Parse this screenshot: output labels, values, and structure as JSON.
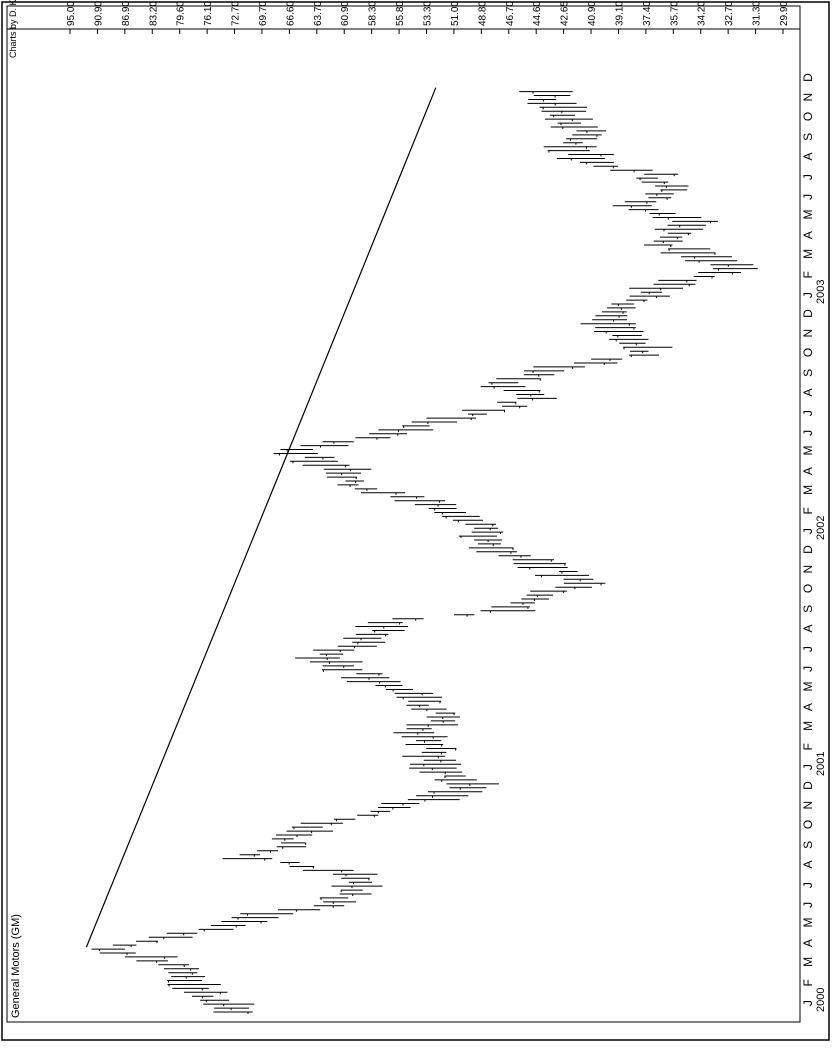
{
  "chart_data": {
    "type": "bar",
    "subtype": "ohlc-range-bars",
    "orientation": "rotated-90-clockwise",
    "title": "General Motors (GM)",
    "credit": "Charts by D. Kowal",
    "price_ticks": [
      "95.00",
      "90.90",
      "86.90",
      "83.20",
      "79.60",
      "76.10",
      "72.70",
      "69.70",
      "66.60",
      "63.70",
      "60.90",
      "58.30",
      "55.80",
      "53.30",
      "51.00",
      "48.80",
      "46.70",
      "44.60",
      "42.65",
      "40.90",
      "39.10",
      "37.40",
      "35.70",
      "34.20",
      "32.70",
      "31.30",
      "29.90"
    ],
    "price_scale": "log",
    "price_range": [
      29.9,
      95.0
    ],
    "month_labels": [
      "J",
      "F",
      "M",
      "A",
      "M",
      "J",
      "J",
      "A",
      "S",
      "O",
      "N",
      "D",
      "J",
      "F",
      "M",
      "A",
      "M",
      "J",
      "J",
      "A",
      "S",
      "O",
      "N",
      "D",
      "J",
      "F",
      "M",
      "A",
      "M",
      "J",
      "J",
      "A",
      "S",
      "O",
      "N",
      "D",
      "J",
      "F",
      "M",
      "A",
      "M",
      "J",
      "J",
      "A",
      "S",
      "O",
      "N",
      "D"
    ],
    "year_labels": [
      {
        "label": "2000",
        "month_index": 0
      },
      {
        "label": "2001",
        "month_index": 12
      },
      {
        "label": "2002",
        "month_index": 24
      },
      {
        "label": "2003",
        "month_index": 36
      }
    ],
    "x_range_months": [
      0,
      48
    ],
    "trendline": [
      {
        "month": 3.3,
        "price": 92.5
      },
      {
        "month": 28.6,
        "price": 66.6
      },
      {
        "month": 47.0,
        "price": 52.5
      }
    ],
    "price_path": [
      {
        "month": 0.0,
        "price": 73
      },
      {
        "month": 1.0,
        "price": 77
      },
      {
        "month": 1.6,
        "price": 80
      },
      {
        "month": 2.2,
        "price": 78
      },
      {
        "month": 3.2,
        "price": 89
      },
      {
        "month": 3.6,
        "price": 84
      },
      {
        "month": 4.2,
        "price": 75
      },
      {
        "month": 4.8,
        "price": 71
      },
      {
        "month": 5.2,
        "price": 65
      },
      {
        "month": 5.6,
        "price": 62
      },
      {
        "month": 6.3,
        "price": 60
      },
      {
        "month": 6.8,
        "price": 59
      },
      {
        "month": 7.3,
        "price": 63
      },
      {
        "month": 7.9,
        "price": 72
      },
      {
        "month": 8.4,
        "price": 67
      },
      {
        "month": 9.0,
        "price": 67
      },
      {
        "month": 9.7,
        "price": 62
      },
      {
        "month": 10.3,
        "price": 57
      },
      {
        "month": 11.0,
        "price": 52
      },
      {
        "month": 11.6,
        "price": 49
      },
      {
        "month": 12.2,
        "price": 52
      },
      {
        "month": 12.8,
        "price": 53
      },
      {
        "month": 13.4,
        "price": 52
      },
      {
        "month": 14.0,
        "price": 54
      },
      {
        "month": 14.6,
        "price": 53
      },
      {
        "month": 15.2,
        "price": 52
      },
      {
        "month": 15.8,
        "price": 54
      },
      {
        "month": 16.4,
        "price": 56
      },
      {
        "month": 17.0,
        "price": 58
      },
      {
        "month": 17.6,
        "price": 62
      },
      {
        "month": 18.0,
        "price": 63
      },
      {
        "month": 18.6,
        "price": 60
      },
      {
        "month": 19.2,
        "price": 58
      },
      {
        "month": 19.9,
        "price": 56
      },
      {
        "month": 20.4,
        "price": 47
      },
      {
        "month": 21.0,
        "price": 45
      },
      {
        "month": 21.8,
        "price": 42
      },
      {
        "month": 22.5,
        "price": 43
      },
      {
        "month": 23.2,
        "price": 46
      },
      {
        "month": 23.9,
        "price": 49
      },
      {
        "month": 24.6,
        "price": 49
      },
      {
        "month": 25.4,
        "price": 51
      },
      {
        "month": 26.2,
        "price": 55
      },
      {
        "month": 26.8,
        "price": 60
      },
      {
        "month": 27.4,
        "price": 61
      },
      {
        "month": 28.0,
        "price": 63
      },
      {
        "month": 28.6,
        "price": 66
      },
      {
        "month": 29.2,
        "price": 59
      },
      {
        "month": 29.9,
        "price": 54
      },
      {
        "month": 30.6,
        "price": 48
      },
      {
        "month": 31.2,
        "price": 45
      },
      {
        "month": 31.8,
        "price": 47
      },
      {
        "month": 32.4,
        "price": 45
      },
      {
        "month": 33.0,
        "price": 41
      },
      {
        "month": 33.5,
        "price": 37
      },
      {
        "month": 34.1,
        "price": 38
      },
      {
        "month": 34.8,
        "price": 39
      },
      {
        "month": 35.4,
        "price": 40
      },
      {
        "month": 36.0,
        "price": 39
      },
      {
        "month": 36.6,
        "price": 37
      },
      {
        "month": 37.2,
        "price": 35
      },
      {
        "month": 37.8,
        "price": 32
      },
      {
        "month": 38.4,
        "price": 34
      },
      {
        "month": 39.0,
        "price": 36
      },
      {
        "month": 39.6,
        "price": 35
      },
      {
        "month": 40.2,
        "price": 35
      },
      {
        "month": 40.8,
        "price": 38
      },
      {
        "month": 41.4,
        "price": 37
      },
      {
        "month": 42.0,
        "price": 36
      },
      {
        "month": 42.6,
        "price": 37
      },
      {
        "month": 43.3,
        "price": 41
      },
      {
        "month": 44.0,
        "price": 42
      },
      {
        "month": 44.6,
        "price": 41
      },
      {
        "month": 45.2,
        "price": 42
      },
      {
        "month": 45.8,
        "price": 43
      },
      {
        "month": 46.4,
        "price": 44
      },
      {
        "month": 47.0,
        "price": 44
      }
    ],
    "grid": false,
    "legend": "none"
  }
}
